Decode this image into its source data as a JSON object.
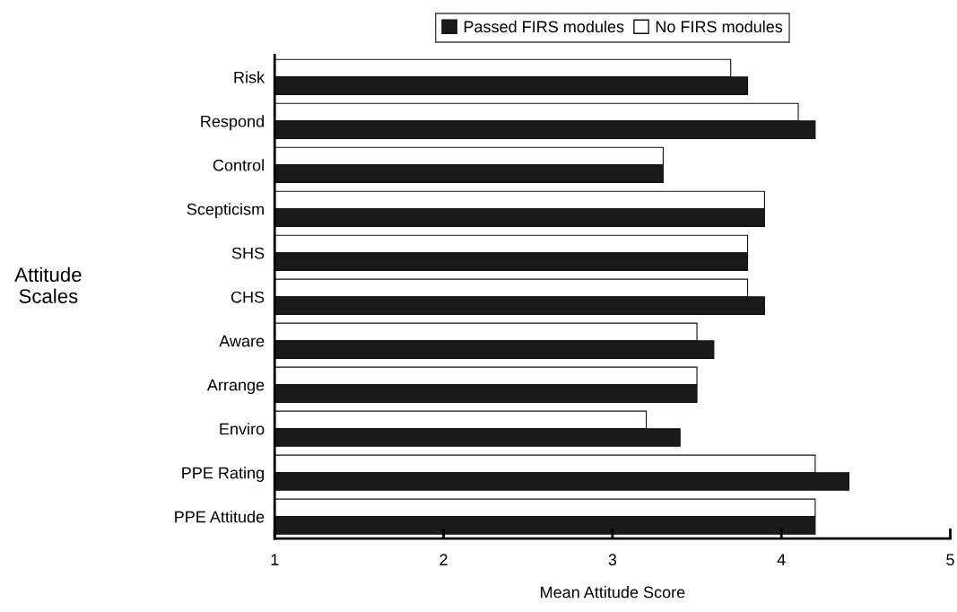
{
  "chart_data": {
    "type": "bar",
    "orientation": "horizontal",
    "xlabel": "Mean Attitude Score",
    "ylabel": "Attitude\nScales",
    "categories": [
      "Risk",
      "Respond",
      "Control",
      "Scepticism",
      "SHS",
      "CHS",
      "Aware",
      "Arrange",
      "Enviro",
      "PPE Rating",
      "PPE Attitude"
    ],
    "series": [
      {
        "name": "No FIRS modules",
        "color": "#ffffff",
        "values": [
          3.7,
          4.1,
          3.3,
          3.9,
          3.8,
          3.8,
          3.5,
          3.5,
          3.2,
          4.2,
          4.2
        ]
      },
      {
        "name": "Passed FIRS modules",
        "color": "#1a1a1a",
        "values": [
          3.8,
          4.2,
          3.3,
          3.9,
          3.8,
          3.9,
          3.6,
          3.5,
          3.4,
          4.4,
          4.2
        ]
      }
    ],
    "xlim": [
      1,
      5
    ],
    "xticks": [
      1,
      2,
      3,
      4,
      5
    ],
    "grid": false,
    "legend": "top"
  }
}
